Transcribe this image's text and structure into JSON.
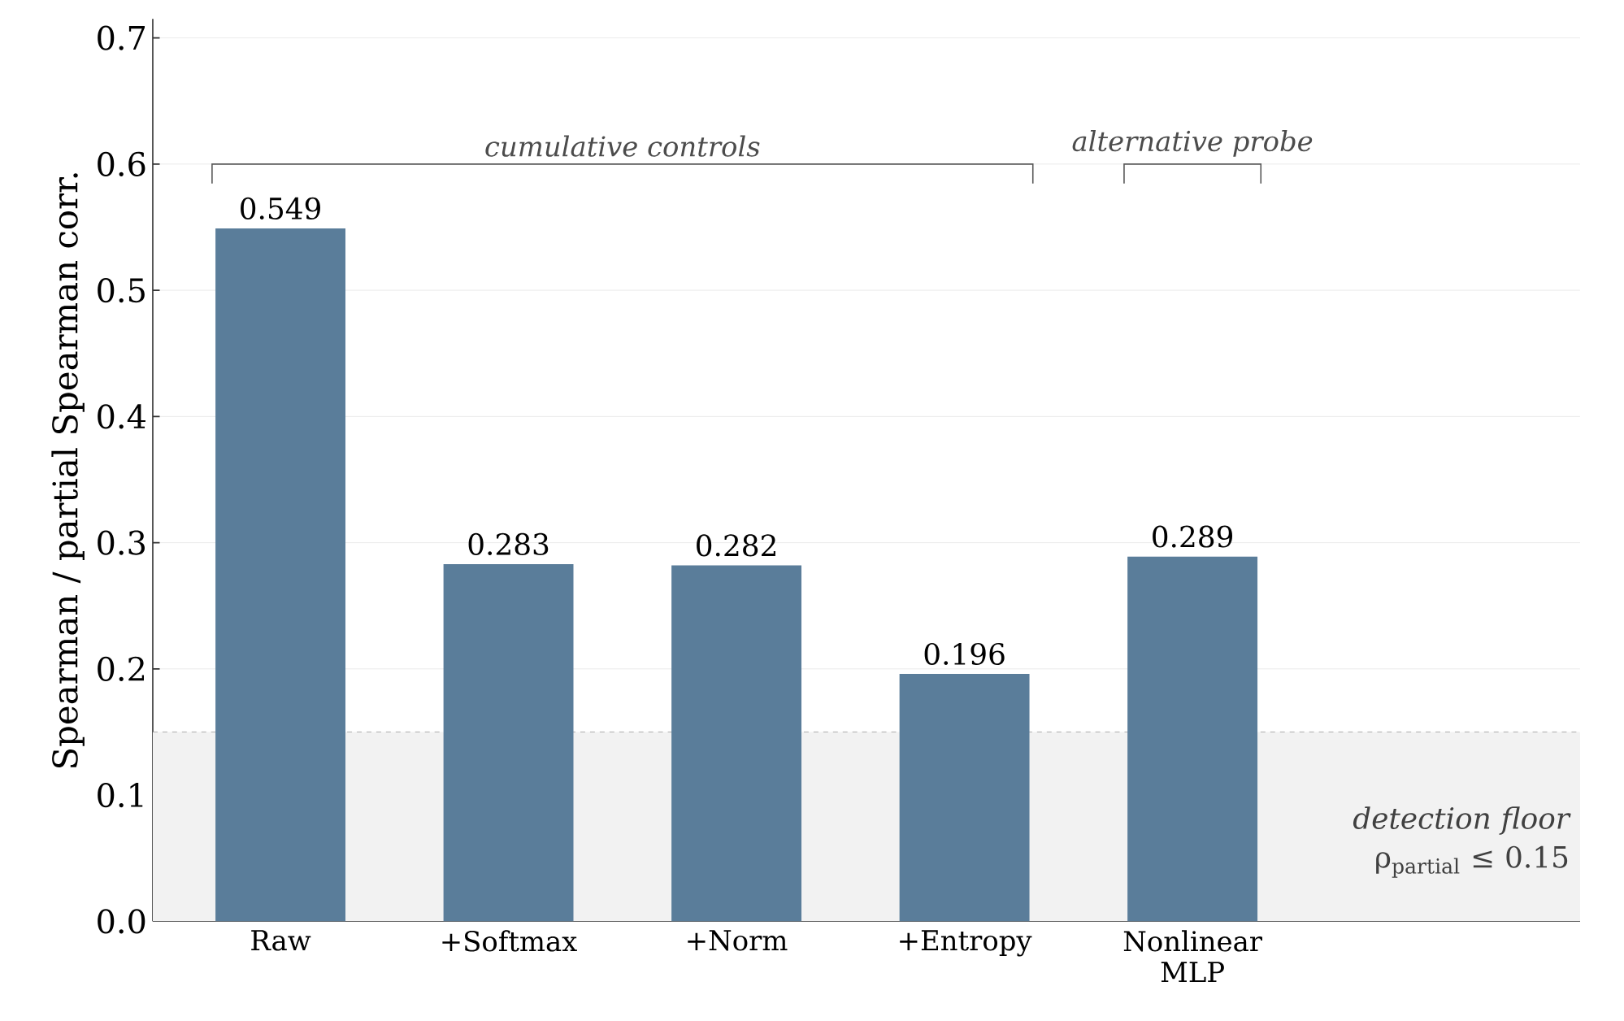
{
  "chart_data": {
    "type": "bar",
    "ylabel": "Spearman / partial Spearman corr.",
    "categories": [
      "Raw",
      "+Softmax",
      "+Norm",
      "+Entropy",
      "Nonlinear MLP"
    ],
    "values": [
      0.549,
      0.283,
      0.282,
      0.196,
      0.289
    ],
    "color": "#5a7d9a",
    "data_labels": true,
    "ylim": [
      0,
      0.715
    ],
    "yticks": [
      {
        "value": 0,
        "label": "0.0"
      },
      0.1,
      0.2,
      0.3,
      0.4,
      0.5,
      0.6,
      0.7
    ],
    "grid": "y",
    "annotations": [
      "cumulative controls",
      "alternative probe"
    ],
    "ref_lines": [
      {
        "axis": "y",
        "value": 0.15,
        "color": "#999999",
        "line_style": "dashed"
      }
    ],
    "bands": [
      {
        "axis": "y",
        "from": 0,
        "to": 0.15,
        "label": "*detection floor* ρ$_{partial}$ ≤ 0.15",
        "color": "#f2f2f2"
      }
    ]
  }
}
